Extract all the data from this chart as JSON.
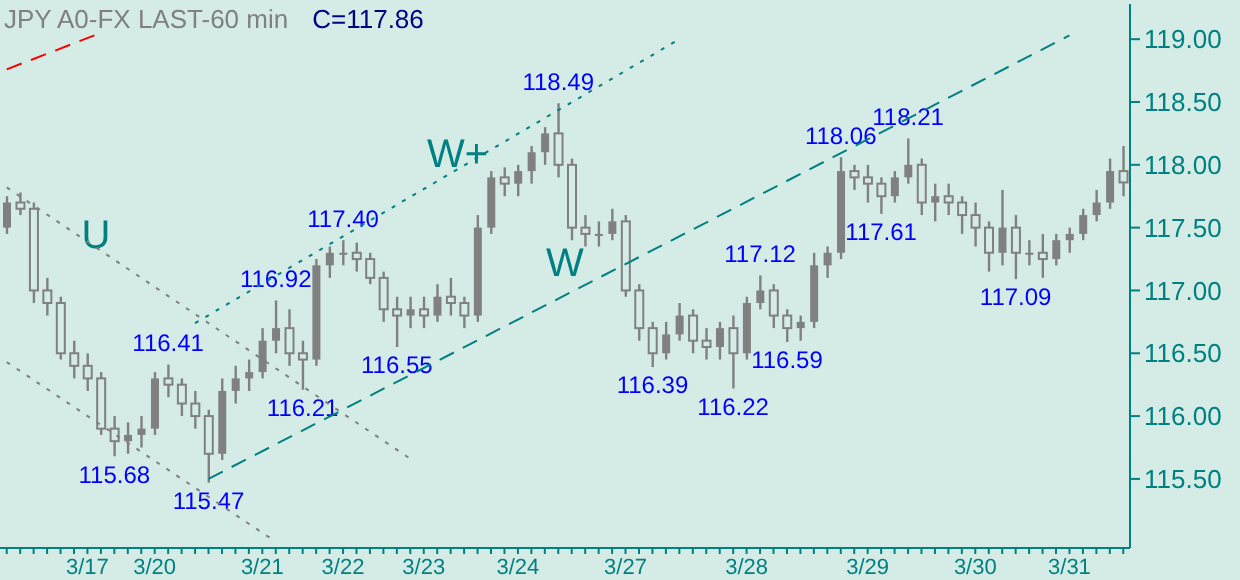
{
  "chart_data": {
    "type": "candlestick",
    "title": "JPY A0-FX LAST-60 min",
    "subtitle": "C=117.86",
    "categories": [
      null,
      null,
      null,
      null,
      null,
      null,
      "3/17",
      null,
      null,
      null,
      null,
      "3/20",
      null,
      null,
      null,
      null,
      null,
      null,
      null,
      "3/21",
      null,
      null,
      null,
      null,
      null,
      "3/22",
      null,
      null,
      null,
      null,
      null,
      "3/23",
      null,
      null,
      null,
      null,
      null,
      null,
      "3/24",
      null,
      null,
      null,
      null,
      null,
      null,
      null,
      "3/27",
      null,
      null,
      null,
      null,
      null,
      null,
      null,
      null,
      "3/28",
      null,
      null,
      null,
      null,
      null,
      null,
      null,
      null,
      "3/29",
      null,
      null,
      null,
      null,
      null,
      null,
      null,
      "3/30",
      null,
      null,
      null,
      null,
      null,
      null,
      "3/31",
      null,
      null,
      null,
      null
    ],
    "ylim": [
      114.95,
      119.28
    ],
    "yticks": [
      {
        "value": 115.5,
        "label": "115.50"
      },
      {
        "value": 116,
        "label": "116.00"
      },
      {
        "value": 116.5,
        "label": "116.50"
      },
      {
        "value": 117,
        "label": "117.00"
      },
      {
        "value": 117.5,
        "label": "117.50"
      },
      {
        "value": 118,
        "label": "118.00"
      },
      {
        "value": 118.5,
        "label": "118.50"
      },
      {
        "value": 119,
        "label": "119.00"
      }
    ],
    "series": [
      {
        "color": "#808080",
        "ohlc": [
          [
            117.5,
            117.75,
            117.45,
            117.7
          ],
          [
            117.7,
            117.78,
            117.6,
            117.65
          ],
          [
            117.65,
            117.7,
            116.9,
            117.0
          ],
          [
            117.0,
            117.1,
            116.8,
            116.9
          ],
          [
            116.9,
            116.95,
            116.45,
            116.5
          ],
          [
            116.5,
            116.6,
            116.3,
            116.4
          ],
          [
            116.4,
            116.5,
            116.2,
            116.3
          ],
          [
            116.3,
            116.35,
            115.85,
            115.9
          ],
          [
            115.9,
            116.0,
            115.68,
            115.8
          ],
          [
            115.8,
            115.95,
            115.7,
            115.85
          ],
          [
            115.85,
            116.0,
            115.75,
            115.9
          ],
          [
            115.9,
            116.35,
            115.85,
            116.3
          ],
          [
            116.3,
            116.41,
            116.15,
            116.25
          ],
          [
            116.25,
            116.3,
            116.0,
            116.1
          ],
          [
            116.1,
            116.2,
            115.9,
            116.0
          ],
          [
            116.0,
            116.05,
            115.47,
            115.7
          ],
          [
            115.7,
            116.3,
            115.65,
            116.2
          ],
          [
            116.2,
            116.4,
            116.1,
            116.3
          ],
          [
            116.3,
            116.45,
            116.2,
            116.35
          ],
          [
            116.35,
            116.7,
            116.3,
            116.6
          ],
          [
            116.6,
            116.92,
            116.5,
            116.7
          ],
          [
            116.7,
            116.85,
            116.4,
            116.5
          ],
          [
            116.5,
            116.6,
            116.21,
            116.45
          ],
          [
            116.45,
            117.25,
            116.4,
            117.2
          ],
          [
            117.2,
            117.35,
            117.1,
            117.3
          ],
          [
            117.3,
            117.4,
            117.2,
            117.3
          ],
          [
            117.3,
            117.38,
            117.15,
            117.25
          ],
          [
            117.25,
            117.3,
            117.05,
            117.1
          ],
          [
            117.1,
            117.15,
            116.75,
            116.85
          ],
          [
            116.85,
            116.95,
            116.55,
            116.8
          ],
          [
            116.8,
            116.95,
            116.7,
            116.85
          ],
          [
            116.85,
            116.95,
            116.7,
            116.8
          ],
          [
            116.8,
            117.05,
            116.75,
            116.95
          ],
          [
            116.95,
            117.1,
            116.8,
            116.9
          ],
          [
            116.9,
            116.95,
            116.7,
            116.8
          ],
          [
            116.8,
            117.6,
            116.75,
            117.5
          ],
          [
            117.5,
            117.95,
            117.45,
            117.9
          ],
          [
            117.9,
            117.98,
            117.75,
            117.85
          ],
          [
            117.85,
            118.0,
            117.75,
            117.95
          ],
          [
            117.95,
            118.15,
            117.85,
            118.1
          ],
          [
            118.1,
            118.3,
            118.0,
            118.25
          ],
          [
            118.25,
            118.49,
            117.9,
            118.0
          ],
          [
            118.0,
            118.05,
            117.4,
            117.5
          ],
          [
            117.5,
            117.6,
            117.35,
            117.45
          ],
          [
            117.45,
            117.55,
            117.35,
            117.45
          ],
          [
            117.45,
            117.65,
            117.4,
            117.55
          ],
          [
            117.55,
            117.6,
            116.95,
            117.0
          ],
          [
            117.0,
            117.05,
            116.6,
            116.7
          ],
          [
            116.7,
            116.75,
            116.39,
            116.5
          ],
          [
            116.5,
            116.75,
            116.45,
            116.65
          ],
          [
            116.65,
            116.9,
            116.6,
            116.8
          ],
          [
            116.8,
            116.85,
            116.5,
            116.6
          ],
          [
            116.6,
            116.7,
            116.45,
            116.55
          ],
          [
            116.55,
            116.75,
            116.45,
            116.7
          ],
          [
            116.7,
            116.8,
            116.22,
            116.5
          ],
          [
            116.5,
            116.95,
            116.45,
            116.9
          ],
          [
            116.9,
            117.12,
            116.85,
            117.0
          ],
          [
            117.0,
            117.05,
            116.7,
            116.8
          ],
          [
            116.8,
            116.85,
            116.59,
            116.7
          ],
          [
            116.7,
            116.8,
            116.6,
            116.75
          ],
          [
            116.75,
            117.3,
            116.7,
            117.2
          ],
          [
            117.2,
            117.35,
            117.1,
            117.3
          ],
          [
            117.3,
            118.06,
            117.25,
            117.95
          ],
          [
            117.95,
            118.0,
            117.8,
            117.9
          ],
          [
            117.9,
            118.0,
            117.7,
            117.85
          ],
          [
            117.85,
            117.9,
            117.61,
            117.75
          ],
          [
            117.75,
            117.95,
            117.7,
            117.9
          ],
          [
            117.9,
            118.21,
            117.85,
            118.0
          ],
          [
            118.0,
            118.05,
            117.6,
            117.7
          ],
          [
            117.7,
            117.85,
            117.55,
            117.75
          ],
          [
            117.75,
            117.85,
            117.6,
            117.7
          ],
          [
            117.7,
            117.75,
            117.45,
            117.6
          ],
          [
            117.6,
            117.7,
            117.35,
            117.5
          ],
          [
            117.5,
            117.55,
            117.15,
            117.3
          ],
          [
            117.3,
            117.8,
            117.2,
            117.5
          ],
          [
            117.5,
            117.6,
            117.09,
            117.3
          ],
          [
            117.3,
            117.4,
            117.2,
            117.3
          ],
          [
            117.3,
            117.45,
            117.1,
            117.25
          ],
          [
            117.25,
            117.45,
            117.2,
            117.4
          ],
          [
            117.4,
            117.5,
            117.3,
            117.45
          ],
          [
            117.45,
            117.65,
            117.4,
            117.6
          ],
          [
            117.6,
            117.8,
            117.55,
            117.7
          ],
          [
            117.7,
            118.05,
            117.65,
            117.95
          ],
          [
            117.95,
            118.15,
            117.75,
            117.86
          ]
        ]
      },
      {
        "type": "line",
        "color": "#008080",
        "line_style": "dotted",
        "values": [
          null,
          null,
          null,
          null,
          null,
          null,
          null,
          null,
          null,
          null,
          null,
          null,
          null,
          null,
          116.74,
          null,
          null,
          null,
          null,
          null,
          null,
          null,
          null,
          null,
          null,
          null,
          null,
          null,
          null,
          null,
          null,
          null,
          null,
          null,
          null,
          null,
          null,
          null,
          null,
          null,
          null,
          null,
          null,
          null,
          null,
          null,
          null,
          null,
          null,
          null,
          119.0,
          null,
          null,
          null,
          null,
          null,
          null,
          null,
          null,
          null,
          null,
          null,
          null,
          null,
          null,
          null,
          null,
          null,
          null,
          null,
          null,
          null,
          null,
          null,
          null,
          null,
          null,
          null,
          null,
          null,
          null,
          null,
          null,
          null
        ]
      },
      {
        "type": "line",
        "color": "#008080",
        "line_style": "dashed",
        "values": [
          null,
          null,
          null,
          null,
          null,
          null,
          null,
          null,
          null,
          null,
          null,
          null,
          null,
          null,
          null,
          115.5,
          null,
          null,
          null,
          null,
          null,
          null,
          null,
          null,
          null,
          null,
          null,
          null,
          null,
          null,
          null,
          null,
          null,
          null,
          null,
          null,
          null,
          null,
          null,
          null,
          null,
          null,
          null,
          null,
          null,
          null,
          null,
          null,
          null,
          null,
          null,
          null,
          null,
          null,
          null,
          null,
          null,
          null,
          null,
          null,
          null,
          null,
          null,
          null,
          null,
          null,
          null,
          null,
          null,
          null,
          null,
          null,
          null,
          null,
          null,
          null,
          null,
          null,
          null,
          119.03,
          null,
          null,
          null,
          null
        ]
      },
      {
        "type": "line",
        "color": "#808080",
        "line_style": "dotted",
        "values": [
          117.82,
          null,
          null,
          null,
          null,
          null,
          null,
          null,
          null,
          null,
          null,
          null,
          null,
          null,
          null,
          null,
          null,
          null,
          null,
          null,
          null,
          null,
          null,
          null,
          null,
          null,
          null,
          null,
          null,
          null,
          115.66,
          null,
          null,
          null,
          null,
          null,
          null,
          null,
          null,
          null,
          null,
          null,
          null,
          null,
          null,
          null,
          null,
          null,
          null,
          null,
          null,
          null,
          null,
          null,
          null,
          null,
          null,
          null,
          null,
          null,
          null,
          null,
          null,
          null,
          null,
          null,
          null,
          null,
          null,
          null,
          null,
          null,
          null,
          null,
          null,
          null,
          null,
          null,
          null,
          null,
          null,
          null,
          null,
          null
        ]
      },
      {
        "type": "line",
        "color": "#808080",
        "line_style": "dotted",
        "values": [
          116.43,
          null,
          null,
          null,
          null,
          null,
          null,
          null,
          null,
          null,
          null,
          null,
          null,
          null,
          null,
          null,
          null,
          null,
          null,
          null,
          115.0,
          null,
          null,
          null,
          null,
          null,
          null,
          null,
          null,
          null,
          null,
          null,
          null,
          null,
          null,
          null,
          null,
          null,
          null,
          null,
          null,
          null,
          null,
          null,
          null,
          null,
          null,
          null,
          null,
          null,
          null,
          null,
          null,
          null,
          null,
          null,
          null,
          null,
          null,
          null,
          null,
          null,
          null,
          null,
          null,
          null,
          null,
          null,
          null,
          null,
          null,
          null,
          null,
          null,
          null,
          null,
          null,
          null,
          null,
          null,
          null,
          null,
          null,
          null
        ]
      },
      {
        "type": "line",
        "color": "#ff0000",
        "line_style": "dashed",
        "values": [
          118.76,
          null,
          null,
          null,
          null,
          null,
          null,
          119.05,
          null,
          null,
          null,
          null,
          null,
          null,
          null,
          null,
          null,
          null,
          null,
          null,
          null,
          null,
          null,
          null,
          null,
          null,
          null,
          null,
          null,
          null,
          null,
          null,
          null,
          null,
          null,
          null,
          null,
          null,
          null,
          null,
          null,
          null,
          null,
          null,
          null,
          null,
          null,
          null,
          null,
          null,
          null,
          null,
          null,
          null,
          null,
          null,
          null,
          null,
          null,
          null,
          null,
          null,
          null,
          null,
          null,
          null,
          null,
          null,
          null,
          null,
          null,
          null,
          null,
          null,
          null,
          null,
          null,
          null,
          null,
          null,
          null,
          null,
          null,
          null
        ]
      }
    ],
    "annotations": [
      {
        "text": "115.68",
        "y": 115.68
      },
      {
        "text": "116.41",
        "y": 116.41
      },
      {
        "text": "115.47",
        "y": 115.47
      },
      {
        "text": "116.92",
        "y": 116.92
      },
      {
        "text": "116.21",
        "y": 116.21
      },
      {
        "text": "117.40",
        "y": 117.4
      },
      {
        "text": "116.55",
        "y": 116.55
      },
      {
        "text": "118.49",
        "y": 118.49
      },
      {
        "text": "116.39",
        "y": 116.39
      },
      {
        "text": "116.22",
        "y": 116.22
      },
      {
        "text": "117.12",
        "y": 117.12
      },
      {
        "text": "116.59",
        "y": 116.59
      },
      {
        "text": "118.06",
        "y": 118.06
      },
      {
        "text": "117.61",
        "y": 117.61
      },
      {
        "text": "118.21",
        "y": 118.21
      },
      {
        "text": "117.09",
        "y": 117.09
      },
      "U",
      "W+",
      "W"
    ]
  }
}
